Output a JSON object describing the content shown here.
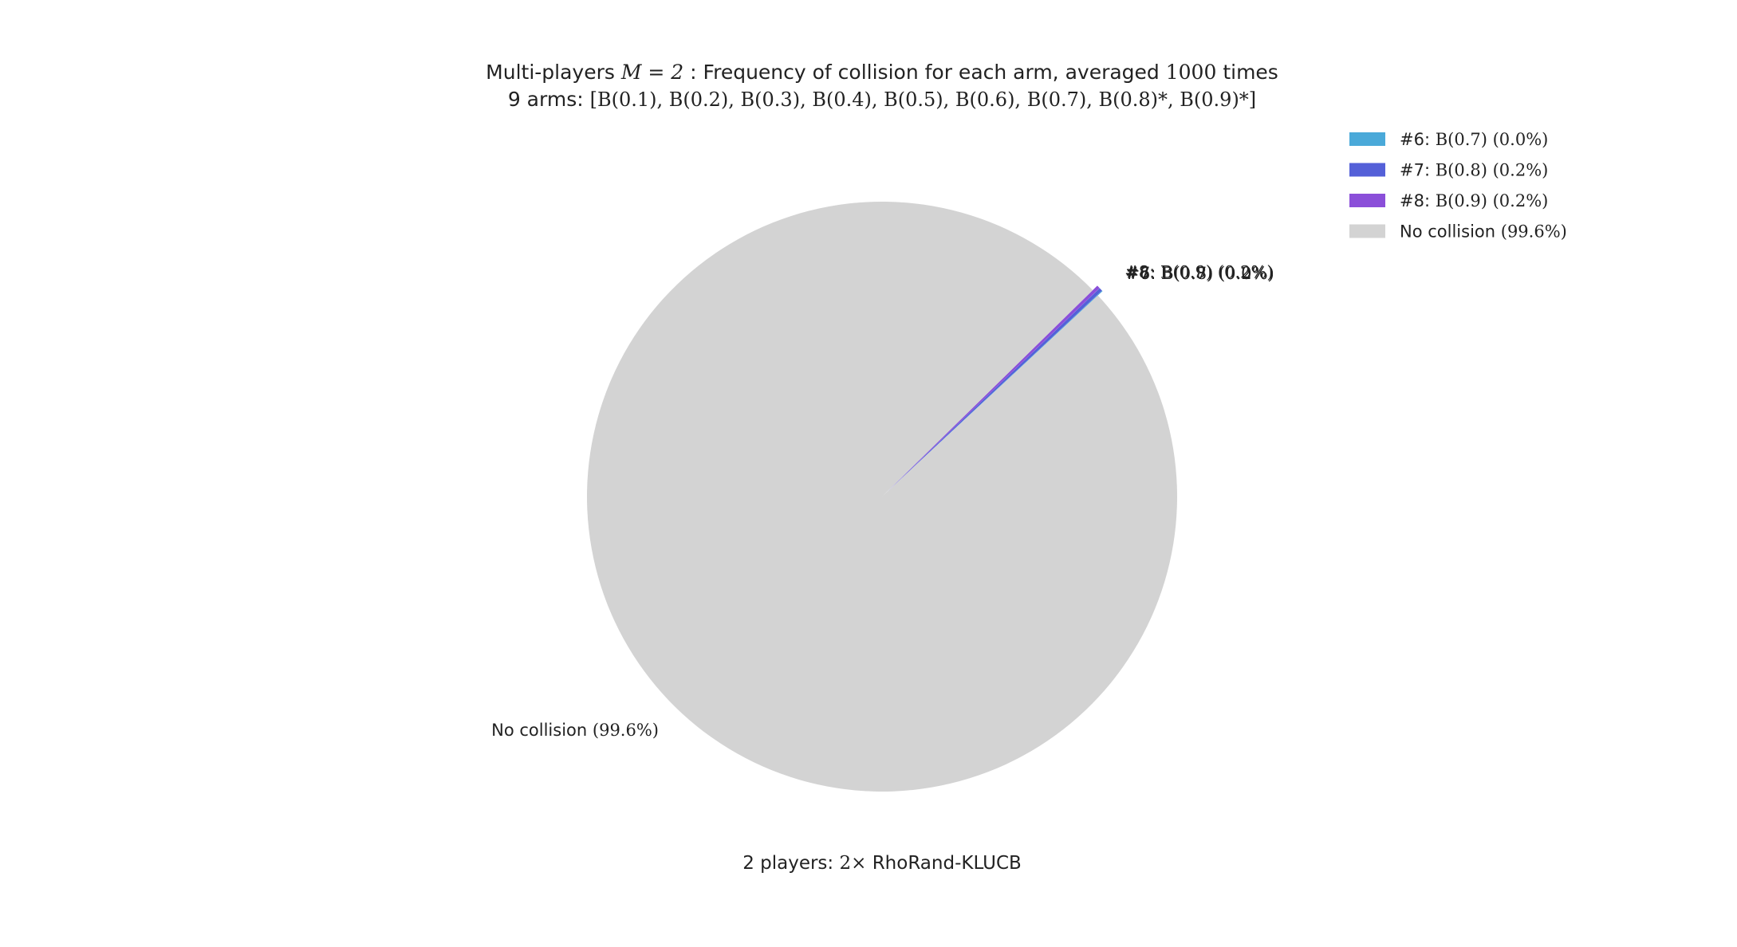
{
  "chart_data": {
    "type": "pie",
    "title_line1_prefix": "Multi-players ",
    "title_line1_math": "M = 2",
    "title_line1_middle": " : Frequency of collision for each arm, averaged ",
    "title_line1_math2": "1000",
    "title_line1_suffix": " times",
    "title_line2_prefix": "9 arms: ",
    "title_line2_math": "[B(0.1), B(0.2), B(0.3), B(0.4), B(0.5), B(0.6), B(0.7), B(0.8)*, B(0.9)*]",
    "xlabel_prefix": "2 players: ",
    "xlabel_math": "2×",
    "xlabel_suffix": " RhoRand-KLUCB",
    "slices": [
      {
        "name": "#6: B(0.7)",
        "arm": "#6: ",
        "math": "B(0.7) (0.0%)",
        "value": 0.04,
        "color": "#4aa9d9",
        "label": "#6: B(0.7) (0.0%)"
      },
      {
        "name": "#7: B(0.8)",
        "arm": "#7: ",
        "math": "B(0.8) (0.2%)",
        "value": 0.18,
        "color": "#5460d8",
        "label": "#7: B(0.8) (0.2%)"
      },
      {
        "name": "#8: B(0.9)",
        "arm": "#8: ",
        "math": "B(0.9) (0.2%)",
        "value": 0.18,
        "color": "#8b4fd9",
        "label": "#8: B(0.9) (0.2%)"
      },
      {
        "name": "No collision",
        "arm": "No collision ",
        "math": "(99.6%)",
        "value": 99.6,
        "color": "#d3d3d3",
        "label": "No collision (99.6%)"
      }
    ],
    "legend_position": "top-right",
    "grid": false
  }
}
